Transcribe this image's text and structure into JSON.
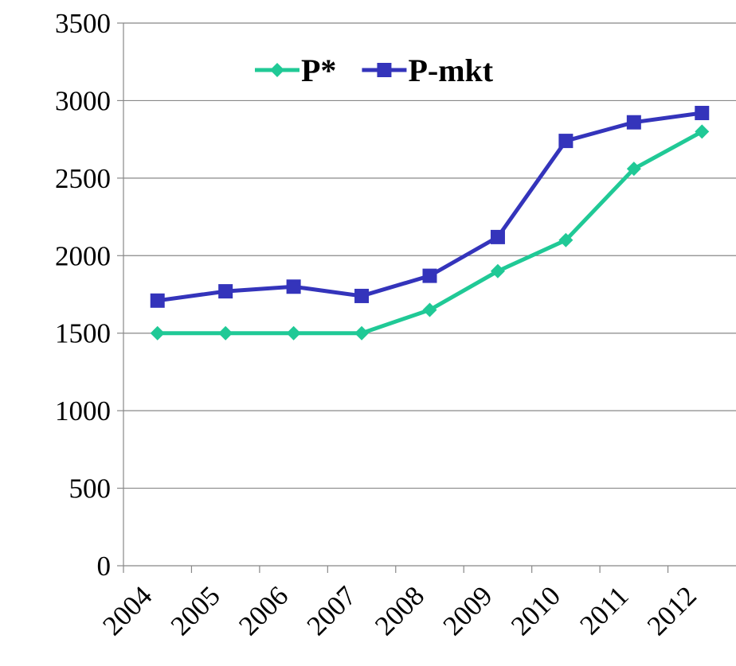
{
  "chart_data": {
    "type": "line",
    "categories": [
      "2004",
      "2005",
      "2006",
      "2007",
      "2008",
      "2009",
      "2010",
      "2011",
      "2012"
    ],
    "series": [
      {
        "name": "P*",
        "color": "#20c996",
        "marker": "diamond",
        "values": [
          1500,
          1500,
          1500,
          1500,
          1650,
          1900,
          2100,
          2560,
          2800
        ]
      },
      {
        "name": "P-mkt",
        "color": "#3434bb",
        "marker": "square",
        "values": [
          1710,
          1770,
          1800,
          1740,
          1870,
          2120,
          2740,
          2860,
          2920
        ]
      }
    ],
    "ylim": [
      0,
      3500
    ],
    "yticks": [
      0,
      500,
      1000,
      1500,
      2000,
      2500,
      3000,
      3500
    ],
    "grid": true,
    "legend": "top"
  }
}
